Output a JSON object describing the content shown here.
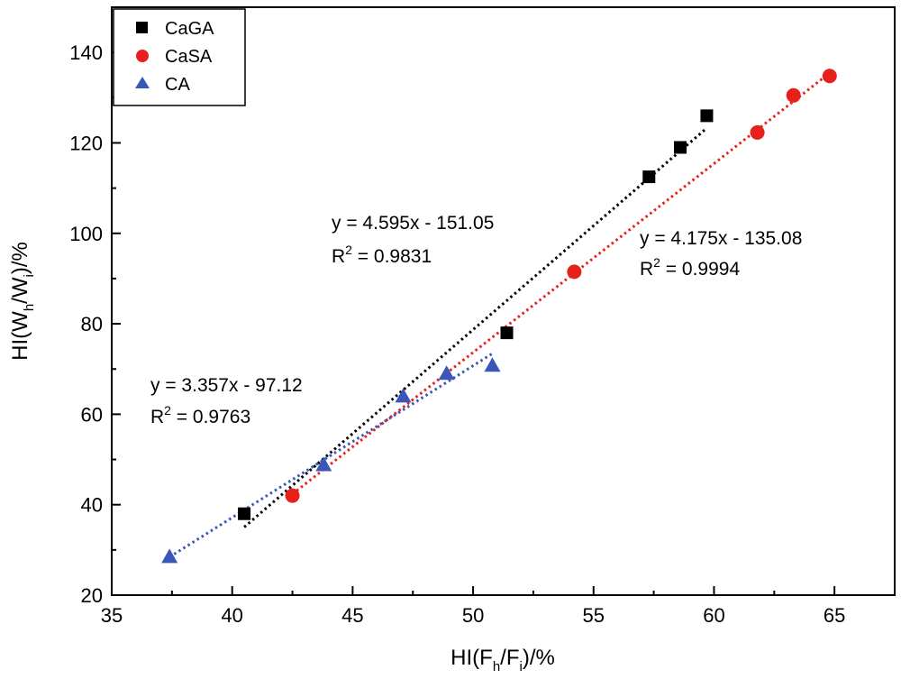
{
  "chart_data": {
    "type": "scatter",
    "title": "",
    "xlabel": {
      "main": "HI(F",
      "sub1": "h",
      "mid": "/F",
      "sub2": "i",
      "end": ")/%"
    },
    "ylabel": {
      "main": "HI(W",
      "sub1": "h",
      "mid": "/W",
      "sub2": "i",
      "end": ")/%"
    },
    "xlim": [
      35,
      67.5
    ],
    "ylim": [
      20,
      150
    ],
    "xticks": [
      35,
      40,
      45,
      50,
      55,
      60,
      65
    ],
    "yticks": [
      20,
      40,
      60,
      80,
      100,
      120,
      140
    ],
    "legend_position": "top-left",
    "series": [
      {
        "name": "CaGA",
        "marker": "square",
        "color": "#000000",
        "points": [
          [
            40.5,
            38.0
          ],
          [
            51.4,
            78.0
          ],
          [
            57.3,
            112.5
          ],
          [
            58.6,
            119.0
          ],
          [
            59.7,
            126.0
          ]
        ],
        "fit": {
          "slope": 4.595,
          "intercept": -151.05,
          "x_range": [
            40.5,
            59.7
          ],
          "color": "#000000"
        },
        "equation": {
          "line1": "y = 4.595x - 151.05",
          "r_prefix": "R",
          "r_sup": "2",
          "r_value": " = 0.9831"
        }
      },
      {
        "name": "CaSA",
        "marker": "circle",
        "color": "#e8201a",
        "points": [
          [
            42.5,
            42.0
          ],
          [
            54.2,
            91.5
          ],
          [
            61.8,
            122.3
          ],
          [
            63.3,
            130.5
          ],
          [
            64.8,
            134.8
          ]
        ],
        "fit": {
          "slope": 4.175,
          "intercept": -135.08,
          "x_range": [
            42.5,
            64.8
          ],
          "color": "#e8201a"
        },
        "equation": {
          "line1": "y = 4.175x - 135.08",
          "r_prefix": "R",
          "r_sup": "2",
          "r_value": " = 0.9994"
        }
      },
      {
        "name": "CA",
        "marker": "triangle",
        "color": "#3a57b8",
        "points": [
          [
            37.4,
            28.5
          ],
          [
            43.8,
            48.8
          ],
          [
            47.1,
            64.0
          ],
          [
            48.9,
            69.0
          ],
          [
            50.8,
            70.8
          ]
        ],
        "fit": {
          "slope": 3.357,
          "intercept": -97.12,
          "x_range": [
            37.4,
            50.8
          ],
          "color": "#3a57b8"
        },
        "equation": {
          "line1": "y = 3.357x - 97.12",
          "r_prefix": "R",
          "r_sup": "2",
          "r_value": " = 0.9763"
        }
      }
    ]
  }
}
